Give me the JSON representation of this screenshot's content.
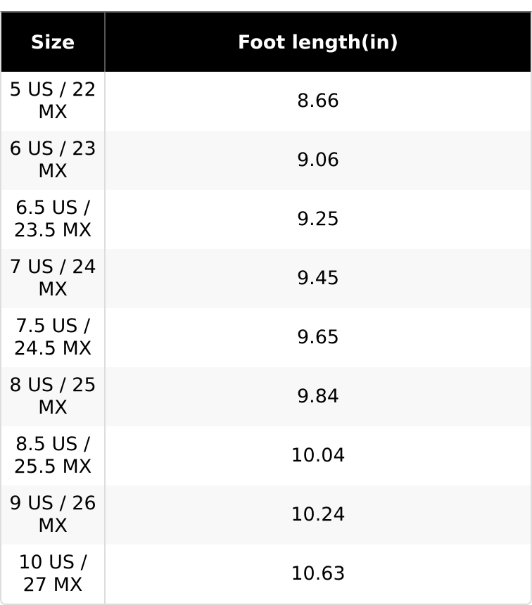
{
  "table": {
    "headers": [
      "Size",
      "Foot length(in)"
    ],
    "rows": [
      [
        "5 US / 22 MX",
        "8.66"
      ],
      [
        "6 US / 23 MX",
        "9.06"
      ],
      [
        "6.5 US / 23.5 MX",
        "9.25"
      ],
      [
        "7 US / 24 MX",
        "9.45"
      ],
      [
        "7.5 US / 24.5 MX",
        "9.65"
      ],
      [
        "8 US / 25 MX",
        "9.84"
      ],
      [
        "8.5 US / 25.5 MX",
        "10.04"
      ],
      [
        "9 US / 26 MX",
        "10.24"
      ],
      [
        "10 US / 27 MX",
        "10.63"
      ]
    ]
  },
  "colors": {
    "header_bg": "#000000",
    "header_text": "#ffffff",
    "alt_row_bg": "#f8f8f8"
  }
}
